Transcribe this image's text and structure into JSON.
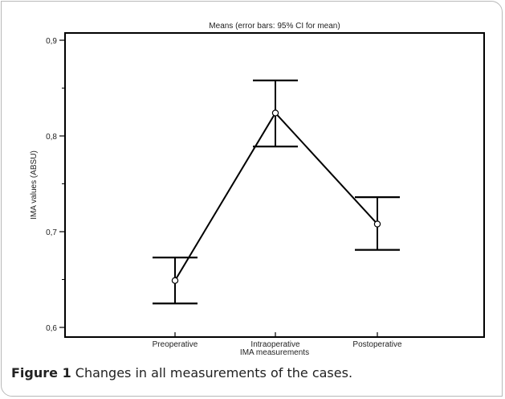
{
  "chart_data": {
    "type": "line",
    "title": "Means  (error bars: 95% CI for mean)",
    "xlabel": "IMA measurements",
    "ylabel": "IMA values (ABSU)",
    "categories": [
      "Preoperative",
      "Intraoperative",
      "Postoperative"
    ],
    "series": [
      {
        "values": [
          0.649,
          0.824,
          0.708
        ],
        "ci_lower": [
          0.625,
          0.789,
          0.681
        ],
        "ci_upper": [
          0.673,
          0.858,
          0.736
        ]
      }
    ],
    "ylim": [
      0.6,
      0.9
    ],
    "yticks": [
      "0,6",
      "0,7",
      "0,8",
      "0,9"
    ],
    "grid": false,
    "legend": "none"
  },
  "caption": {
    "label": "Figure 1",
    "text": "Changes in all measurements of the cases."
  },
  "colors": {
    "line": "#000000",
    "marker_fill": "#ffffff",
    "text": "#222222",
    "frame": "#b9b9b9"
  }
}
